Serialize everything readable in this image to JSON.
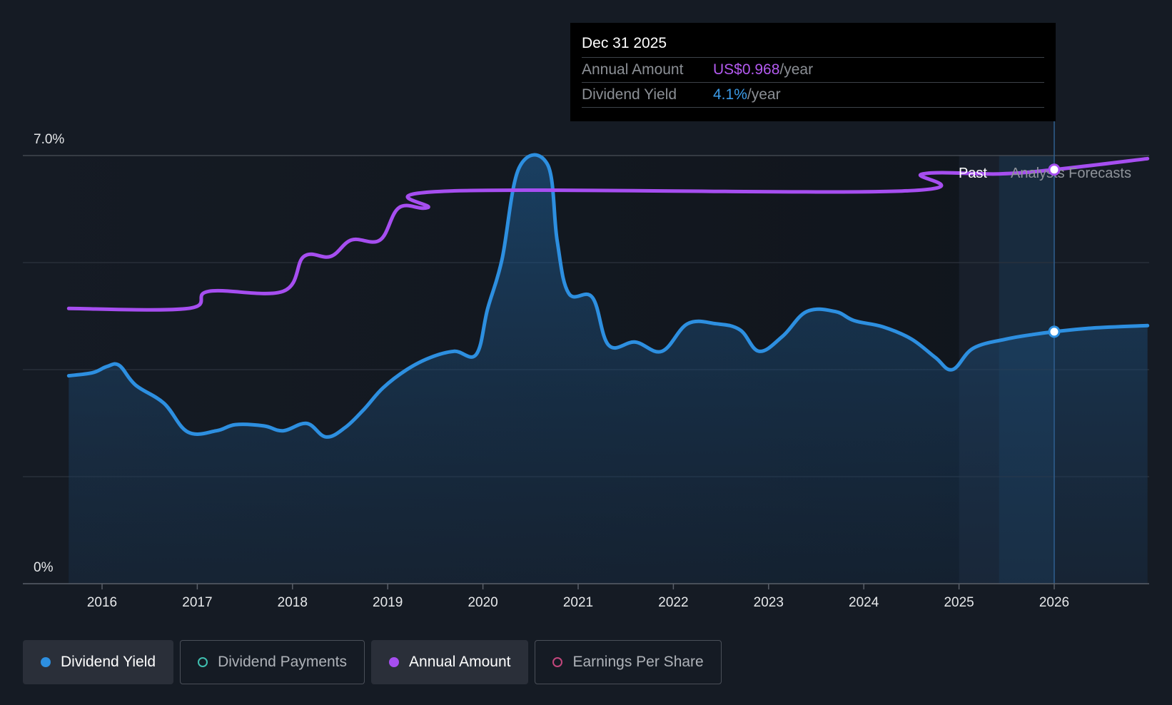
{
  "tooltip": {
    "date": "Dec 31 2025",
    "amount_label": "Annual Amount",
    "amount_value": "US$0.968",
    "amount_unit": "/year",
    "yield_label": "Dividend Yield",
    "yield_value": "4.1%",
    "yield_unit": "/year"
  },
  "zones": {
    "past": "Past",
    "forecast": "Analysts Forecasts"
  },
  "legend": {
    "items": [
      {
        "label": "Dividend Yield",
        "color": "#2d8fe0",
        "active": true
      },
      {
        "label": "Dividend Payments",
        "color": "#3fbfb0",
        "active": false
      },
      {
        "label": "Annual Amount",
        "color": "#a64ef0",
        "active": true
      },
      {
        "label": "Earnings Per Share",
        "color": "#c2467c",
        "active": false
      }
    ]
  },
  "colors": {
    "yield": "#2d8fe0",
    "amount": "#a64ef0",
    "background": "#151b24"
  },
  "chart_data": {
    "type": "line",
    "y_axis": {
      "min": 0,
      "max": 7.0,
      "unit": "%",
      "tick_labels": [
        "0%",
        "7.0%"
      ]
    },
    "x_axis": {
      "min": 2015.65,
      "max": 2026.98,
      "tick_labels": [
        "2016",
        "2017",
        "2018",
        "2019",
        "2020",
        "2021",
        "2022",
        "2023",
        "2024",
        "2025",
        "2026"
      ]
    },
    "past_end": 2025.0,
    "forecast_start": 2025.42,
    "highlight_x": 2026.0,
    "series": [
      {
        "name": "Dividend Yield",
        "unit": "%",
        "fill": true,
        "points": [
          [
            2015.65,
            3.4
          ],
          [
            2015.9,
            3.45
          ],
          [
            2016.05,
            3.55
          ],
          [
            2016.18,
            3.57
          ],
          [
            2016.35,
            3.25
          ],
          [
            2016.65,
            2.95
          ],
          [
            2016.9,
            2.48
          ],
          [
            2017.2,
            2.5
          ],
          [
            2017.4,
            2.6
          ],
          [
            2017.7,
            2.58
          ],
          [
            2017.9,
            2.5
          ],
          [
            2018.15,
            2.62
          ],
          [
            2018.35,
            2.4
          ],
          [
            2018.55,
            2.55
          ],
          [
            2018.75,
            2.85
          ],
          [
            2018.95,
            3.2
          ],
          [
            2019.2,
            3.5
          ],
          [
            2019.45,
            3.7
          ],
          [
            2019.7,
            3.8
          ],
          [
            2019.93,
            3.75
          ],
          [
            2020.05,
            4.5
          ],
          [
            2020.2,
            5.3
          ],
          [
            2020.38,
            6.8
          ],
          [
            2020.68,
            6.85
          ],
          [
            2020.78,
            5.6
          ],
          [
            2020.9,
            4.75
          ],
          [
            2021.15,
            4.68
          ],
          [
            2021.32,
            3.9
          ],
          [
            2021.6,
            3.95
          ],
          [
            2021.88,
            3.8
          ],
          [
            2022.15,
            4.25
          ],
          [
            2022.45,
            4.25
          ],
          [
            2022.7,
            4.15
          ],
          [
            2022.9,
            3.8
          ],
          [
            2023.15,
            4.05
          ],
          [
            2023.4,
            4.45
          ],
          [
            2023.7,
            4.45
          ],
          [
            2023.9,
            4.3
          ],
          [
            2024.2,
            4.2
          ],
          [
            2024.5,
            4.0
          ],
          [
            2024.75,
            3.7
          ],
          [
            2024.93,
            3.5
          ],
          [
            2025.15,
            3.85
          ],
          [
            2025.5,
            4.0
          ],
          [
            2025.8,
            4.08
          ],
          [
            2026.0,
            4.12
          ],
          [
            2026.4,
            4.18
          ],
          [
            2026.98,
            4.22
          ]
        ]
      },
      {
        "name": "Annual Amount",
        "unit": "US$/year",
        "fill": false,
        "points": [
          [
            2015.65,
            4.5
          ],
          [
            2016.9,
            4.5
          ],
          [
            2017.12,
            4.78
          ],
          [
            2017.9,
            4.78
          ],
          [
            2018.12,
            5.35
          ],
          [
            2018.4,
            5.35
          ],
          [
            2018.62,
            5.62
          ],
          [
            2018.92,
            5.62
          ],
          [
            2019.12,
            6.15
          ],
          [
            2019.42,
            6.15
          ],
          [
            2019.65,
            6.42
          ],
          [
            2024.4,
            6.42
          ],
          [
            2024.62,
            6.7
          ],
          [
            2025.42,
            6.7
          ],
          [
            2026.0,
            6.77
          ],
          [
            2026.98,
            6.95
          ]
        ]
      }
    ]
  }
}
